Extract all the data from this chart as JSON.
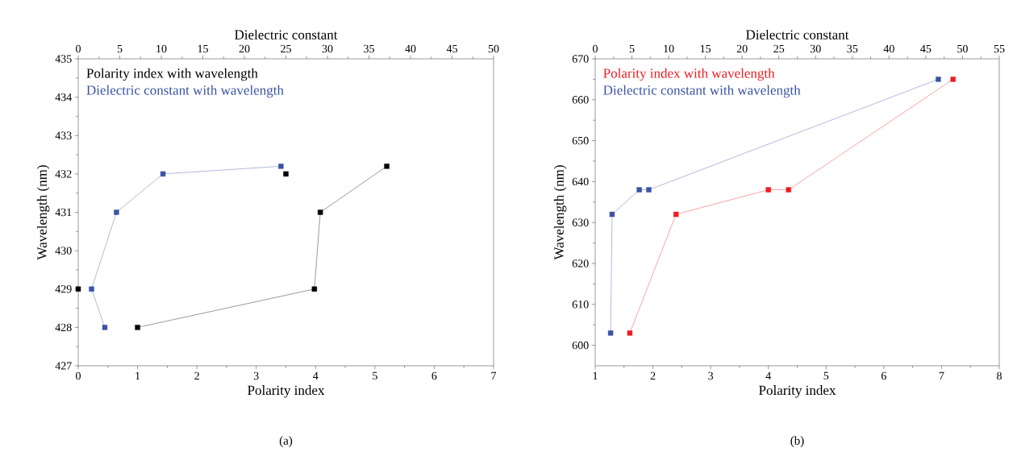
{
  "chart_data": [
    {
      "type": "line",
      "xlabel": "Polarity index",
      "x2label": "Dielectric constant",
      "ylabel": "Wavelength (nm)",
      "xlim": [
        0,
        7
      ],
      "xticks": [
        0,
        1,
        2,
        3,
        4,
        5,
        6,
        7
      ],
      "x2lim": [
        0,
        50
      ],
      "x2ticks": [
        0,
        5,
        10,
        15,
        20,
        25,
        30,
        35,
        40,
        45,
        50
      ],
      "ylim": [
        427,
        435
      ],
      "yticks": [
        427,
        428,
        429,
        430,
        431,
        432,
        433,
        434,
        435
      ],
      "marker": "square",
      "legend": "top left",
      "annotations": [
        "(a)"
      ],
      "series": [
        {
          "name": "Polarity index with wavelength",
          "color": "#000000",
          "x": [
            1.0,
            3.98,
            4.08,
            5.2
          ],
          "values": [
            428,
            429,
            431,
            432.2
          ]
        },
        {
          "type": "scatter",
          "color": "#000000",
          "x": [
            0,
            3.5
          ],
          "values": [
            429,
            432
          ]
        },
        {
          "name": "Dielectric constant with wavelength",
          "color": "#3953a4",
          "axis": "x2",
          "x": [
            3.2,
            1.6,
            4.6,
            10.2,
            24.4
          ],
          "values": [
            428,
            429,
            431,
            432,
            432.2
          ]
        }
      ]
    },
    {
      "type": "line",
      "xlabel": "Polarity index",
      "x2label": "Dielectric constant",
      "ylabel": "Wavelength (nm)",
      "xlim": [
        1,
        8
      ],
      "xticks": [
        1,
        2,
        3,
        4,
        5,
        6,
        7,
        8
      ],
      "x2lim": [
        0,
        55
      ],
      "x2ticks": [
        0,
        5,
        10,
        15,
        20,
        25,
        30,
        35,
        40,
        45,
        50,
        55
      ],
      "ylim": [
        595,
        670
      ],
      "yticks": [
        600,
        610,
        620,
        630,
        640,
        650,
        660,
        670
      ],
      "marker": "square",
      "legend": "top left",
      "annotations": [
        "(b)"
      ],
      "series": [
        {
          "name": "Polarity index with wavelength",
          "color": "#ed1c24",
          "x": [
            1.6,
            2.4,
            4.0,
            4.35,
            7.2
          ],
          "values": [
            603,
            632,
            638,
            638,
            665
          ]
        },
        {
          "name": "Dielectric constant with wavelength",
          "color": "#3953a4",
          "axis": "x2",
          "x": [
            2.1,
            2.3,
            6.0,
            7.3,
            46.7
          ],
          "values": [
            603,
            632,
            638,
            638,
            665
          ]
        }
      ]
    }
  ]
}
